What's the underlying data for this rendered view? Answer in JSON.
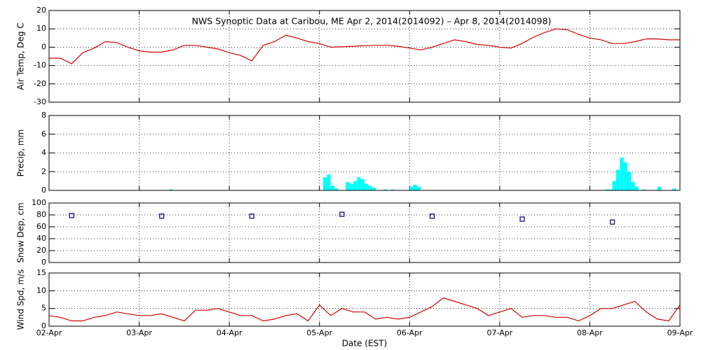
{
  "chart_data": [
    {
      "type": "line",
      "title": "NWS Synoptic Data at Caribou, ME   Apr  2, 2014(2014092) – Apr  8, 2014(2014098)",
      "ylabel": "Air Temp, Deg C",
      "color": "#d40000",
      "grid": true,
      "ylim": [
        -30,
        20
      ],
      "yticks": [
        -30,
        -20,
        -10,
        0,
        10,
        20
      ],
      "x": [
        0,
        3,
        6,
        9,
        12,
        15,
        18,
        21,
        24,
        27,
        30,
        33,
        36,
        39,
        42,
        45,
        48,
        51,
        54,
        57,
        60,
        63,
        66,
        69,
        72,
        75,
        78,
        81,
        84,
        87,
        90,
        93,
        96,
        99,
        102,
        105,
        108,
        111,
        114,
        117,
        120,
        123,
        126,
        129,
        132,
        135,
        138,
        141,
        144,
        147,
        150,
        153,
        156,
        159,
        162,
        165,
        168
      ],
      "values": [
        -6,
        -6,
        -9,
        -3,
        -0.5,
        3,
        2.5,
        0,
        -2,
        -2.7,
        -2.7,
        -1.5,
        1,
        1,
        0,
        -1,
        -3,
        -4.5,
        -7.5,
        1,
        3,
        6.5,
        5,
        3,
        2,
        0,
        0.2,
        0.5,
        0.8,
        1,
        1,
        0.5,
        -0.5,
        -1.5,
        0,
        2,
        4,
        3,
        1.5,
        1,
        0,
        -0.5,
        2,
        5.5,
        8,
        10,
        9.5,
        7,
        5,
        4,
        2,
        2,
        3,
        4.5,
        4.5,
        4,
        4
      ]
    },
    {
      "type": "bar",
      "ylabel": "Precip, mm",
      "color": "#00ffff",
      "grid": true,
      "ylim": [
        0,
        8
      ],
      "yticks": [
        0,
        2,
        4,
        6,
        8
      ],
      "x": [
        32,
        73,
        74,
        75,
        76,
        79,
        80,
        81,
        82,
        83,
        84,
        85,
        86,
        89,
        91,
        96,
        97,
        98,
        148,
        149,
        150,
        151,
        152,
        153,
        154,
        155,
        156,
        158,
        162,
        166
      ],
      "values": [
        0.1,
        1.4,
        1.7,
        0.5,
        0.2,
        0.9,
        0.7,
        1.0,
        1.4,
        1.2,
        0.7,
        0.5,
        0.3,
        0.1,
        0.1,
        0.4,
        0.6,
        0.4,
        0.1,
        0.1,
        1.0,
        2.2,
        3.5,
        3.0,
        2.0,
        0.9,
        0.4,
        0.1,
        0.4,
        0.2
      ]
    },
    {
      "type": "scatter",
      "ylabel": "Snow Dep, cm",
      "color": "#000080",
      "grid": true,
      "ylim": [
        0,
        100
      ],
      "yticks": [
        0,
        20,
        40,
        60,
        80,
        100
      ],
      "x": [
        6,
        30,
        54,
        78,
        102,
        126,
        150
      ],
      "values": [
        79,
        78,
        78,
        81,
        78,
        73,
        68
      ]
    },
    {
      "type": "line",
      "ylabel": "Wind Spd, m/s",
      "xlabel": "Date (EST)",
      "color": "#d40000",
      "grid": true,
      "ylim": [
        0,
        15
      ],
      "yticks": [
        0,
        5,
        10,
        15
      ],
      "xlim": [
        0,
        168
      ],
      "xticks": [
        {
          "value": 0,
          "label": "02-Apr"
        },
        {
          "value": 24,
          "label": "03-Apr"
        },
        {
          "value": 48,
          "label": "04-Apr"
        },
        {
          "value": 72,
          "label": "05-Apr"
        },
        {
          "value": 96,
          "label": "06-Apr"
        },
        {
          "value": 120,
          "label": "07-Apr"
        },
        {
          "value": 144,
          "label": "08-Apr"
        },
        {
          "value": 168,
          "label": "09-Apr"
        }
      ],
      "x": [
        0,
        3,
        6,
        9,
        12,
        15,
        18,
        21,
        24,
        27,
        30,
        33,
        36,
        39,
        42,
        45,
        48,
        51,
        54,
        57,
        60,
        63,
        66,
        69,
        72,
        75,
        78,
        81,
        84,
        87,
        90,
        93,
        96,
        99,
        102,
        105,
        108,
        111,
        114,
        117,
        120,
        123,
        126,
        129,
        132,
        135,
        138,
        141,
        144,
        147,
        150,
        153,
        156,
        159,
        162,
        165,
        168
      ],
      "values": [
        3,
        2.5,
        1.5,
        1.5,
        2.5,
        3,
        4,
        3.5,
        3,
        3,
        3.5,
        2.5,
        1.5,
        4.5,
        4.5,
        5,
        4,
        3,
        3,
        1.5,
        2,
        3,
        3.5,
        1.5,
        6,
        3,
        5,
        4,
        4,
        2,
        2.5,
        2,
        2.5,
        4,
        5.5,
        8,
        7,
        6,
        5,
        3,
        4,
        5,
        2.5,
        3,
        3,
        2.5,
        2.5,
        1.5,
        3,
        5,
        5,
        6,
        7,
        4,
        2,
        1.5,
        6
      ]
    }
  ]
}
